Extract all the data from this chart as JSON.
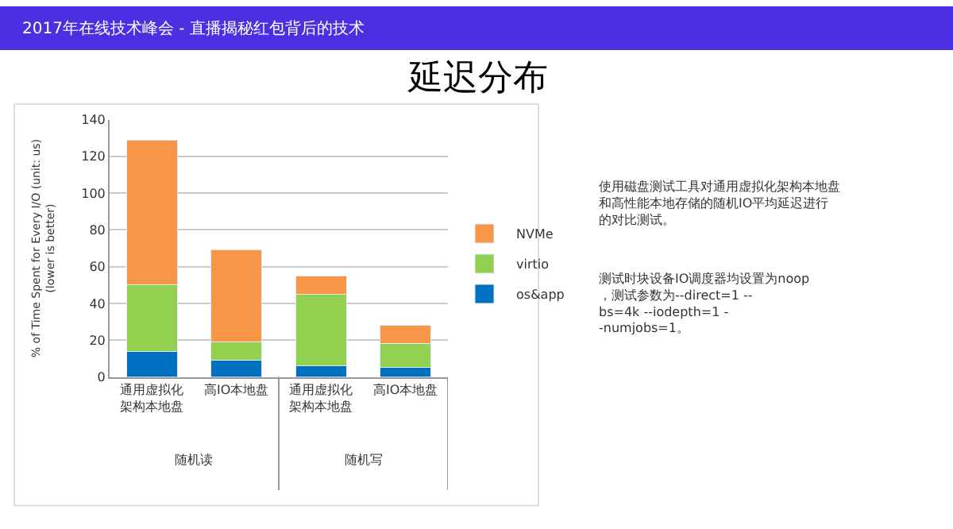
{
  "chart_data": {
    "type": "bar",
    "stacked": true,
    "title": "延迟分布",
    "subtitle": "2017年在线技术峰会 - 直播揭秘红包背后的技术",
    "ylabel": "% of Time Spent for Every I/O (unit: us)\n(lower is better)",
    "categories": [
      "通用虚拟化架构本地盘",
      "高IO本地盘",
      "通用虚拟化架构本地盘",
      "高IO本地盘"
    ],
    "series": [
      {
        "name": "os&app",
        "color": "#0070c0",
        "values": [
          14,
          9,
          6,
          5
        ]
      },
      {
        "name": "virtio",
        "color": "#92d050",
        "values": [
          36,
          10,
          39,
          13
        ]
      },
      {
        "name": "NVMe",
        "color": "#f79646",
        "values": [
          79,
          50,
          10,
          10
        ]
      }
    ],
    "ylim": [
      0,
      140
    ],
    "yticks": [
      0,
      20,
      40,
      60,
      80,
      100,
      120,
      140
    ],
    "grid": "y",
    "legend": "right",
    "annotations": [
      "随机读",
      "随机写",
      "使用磁盘测试工具对通用虚拟化架构本地盘和高性能本地存储的随机IO平均延迟进行的对比测试。",
      "测试时块设备IO调度器均设置为noop，测试参数为--direct=1 --bs=4k --iodepth=1 --numjobs=1。"
    ]
  }
}
